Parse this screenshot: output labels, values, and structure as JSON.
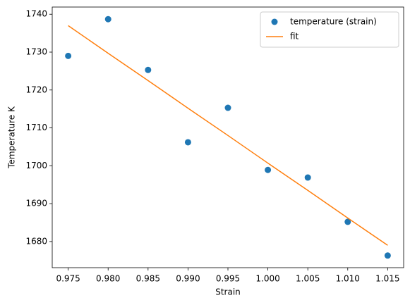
{
  "chart_data": {
    "type": "scatter",
    "xlabel": "Strain",
    "ylabel": "Temperature K",
    "x": [
      0.975,
      0.98,
      0.985,
      0.99,
      0.995,
      1.0,
      1.005,
      1.01,
      1.015
    ],
    "series": [
      {
        "name": "temperature (strain)",
        "color": "#1f77b4",
        "style": "markers",
        "values": [
          1729.0,
          1738.7,
          1725.3,
          1706.2,
          1715.3,
          1698.9,
          1696.9,
          1685.2,
          1676.3
        ]
      },
      {
        "name": "fit",
        "color": "#ff7f0e",
        "style": "line",
        "values": [
          1737.0,
          1729.7,
          1722.5,
          1715.2,
          1708.0,
          1700.7,
          1693.5,
          1686.2,
          1679.0
        ]
      }
    ],
    "xlim": [
      0.973,
      1.017
    ],
    "ylim": [
      1673.1,
      1741.9
    ],
    "xticks": [
      0.975,
      {
        "value": 0.98,
        "label": "0.980"
      },
      0.985,
      {
        "value": 0.99,
        "label": "0.990"
      },
      0.995,
      {
        "value": 1.0,
        "label": "1.000"
      },
      1.005,
      {
        "value": 1.01,
        "label": "1.010"
      },
      1.015
    ],
    "yticks": [
      1680,
      1690,
      1700,
      1710,
      1720,
      1730,
      1740
    ],
    "legend": "upper right"
  }
}
